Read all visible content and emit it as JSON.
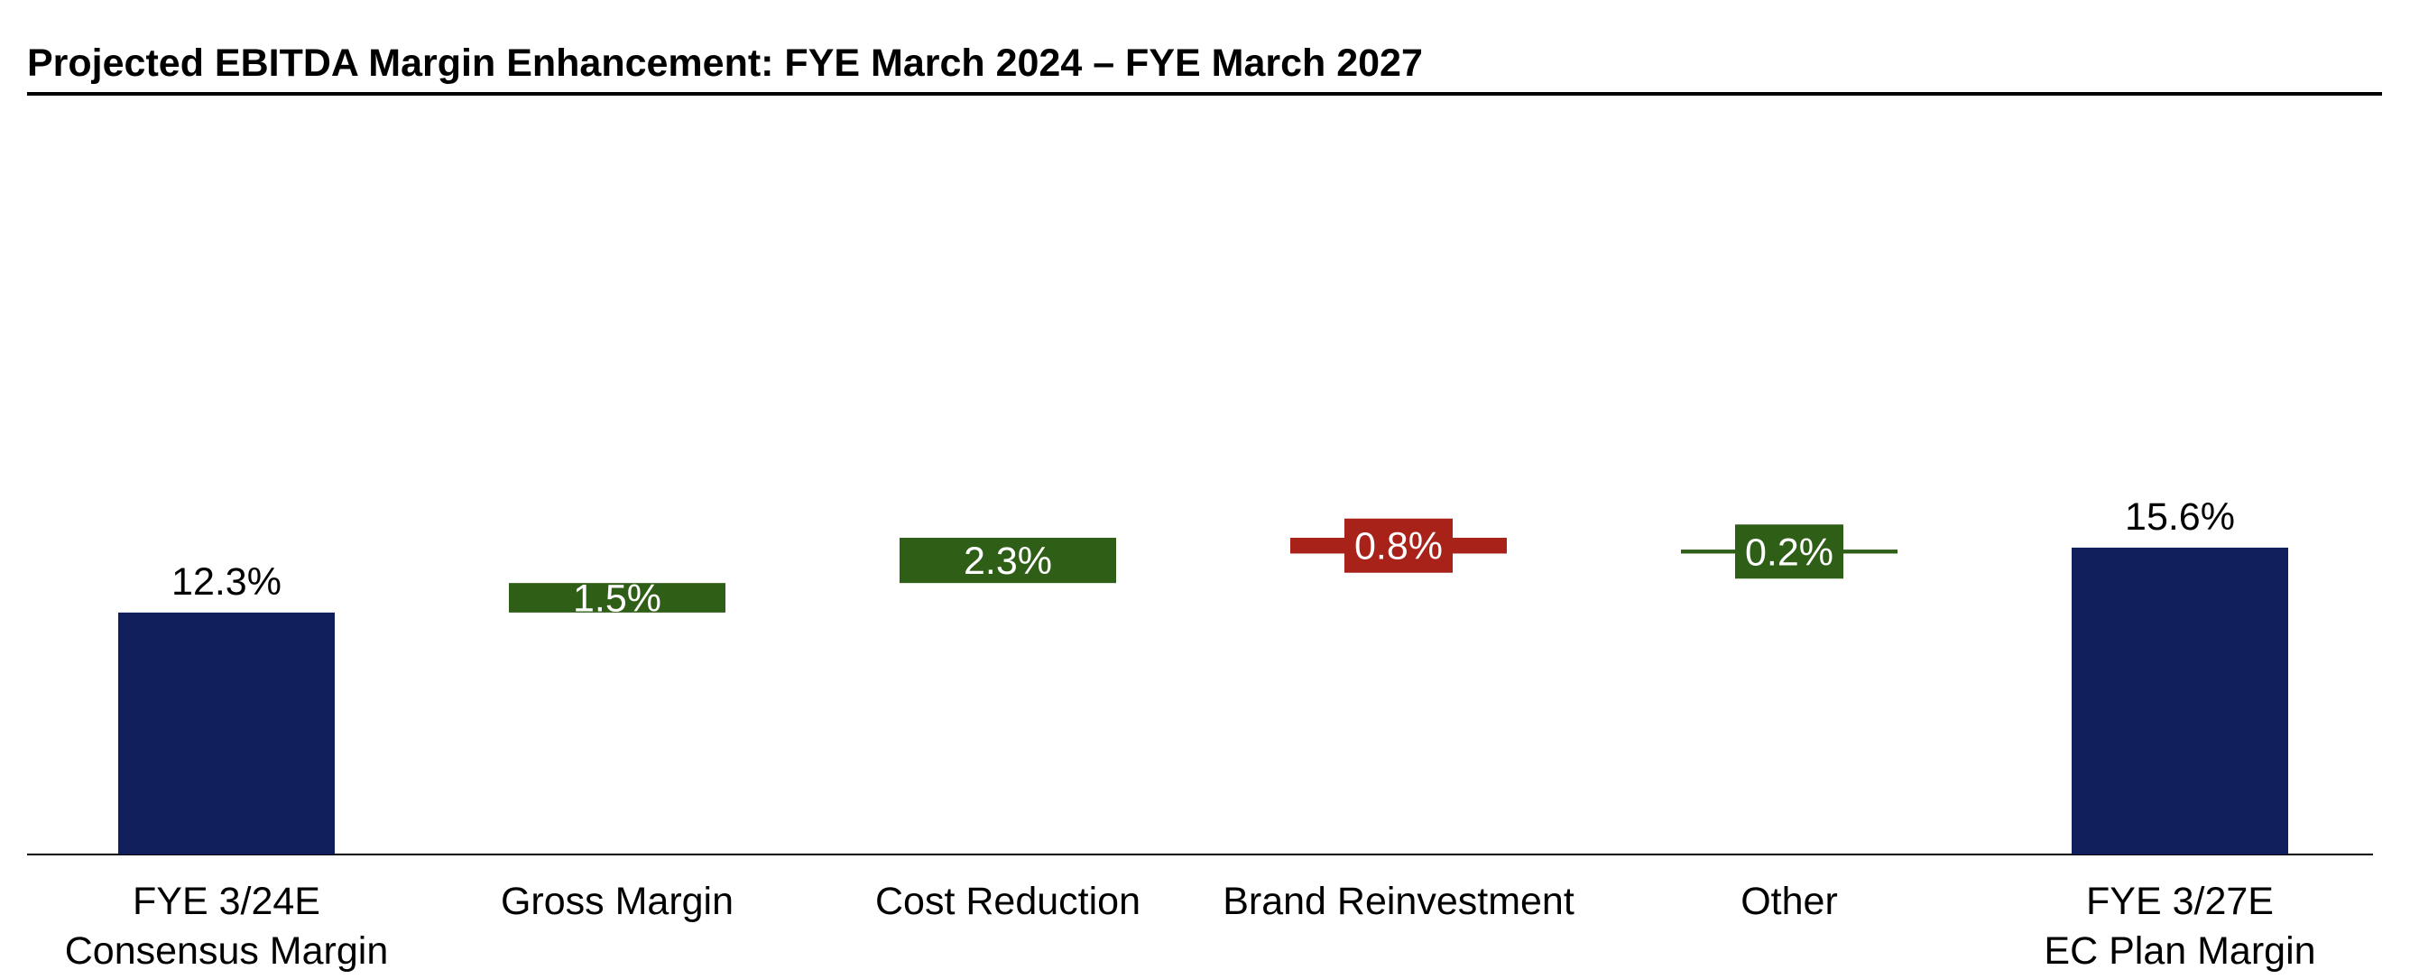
{
  "chart_data": {
    "type": "waterfall",
    "title": "Projected EBITDA Margin Enhancement: FYE March 2024 – FYE March 2027",
    "xlabel": "",
    "ylabel": "",
    "grid": false,
    "colors": {
      "total": "#101f5b",
      "increase": "#2f5e17",
      "decrease": "#a82219"
    },
    "steps": [
      {
        "label": [
          "FYE 3/24E",
          "Consensus Margin"
        ],
        "kind": "total",
        "value": 12.3,
        "value_label": "12.3%"
      },
      {
        "label": [
          "Gross Margin"
        ],
        "kind": "increase",
        "value": 1.5,
        "value_label": "1.5%"
      },
      {
        "label": [
          "Cost Reduction"
        ],
        "kind": "increase",
        "value": 2.3,
        "value_label": "2.3%"
      },
      {
        "label": [
          "Brand Reinvestment"
        ],
        "kind": "decrease",
        "value": 0.8,
        "value_label": "0.8%"
      },
      {
        "label": [
          "Other"
        ],
        "kind": "increase",
        "value": 0.2,
        "value_label": "0.2%"
      },
      {
        "label": [
          "FYE 3/27E",
          "EC Plan Margin"
        ],
        "kind": "total",
        "value": 15.6,
        "value_label": "15.6%"
      }
    ]
  }
}
